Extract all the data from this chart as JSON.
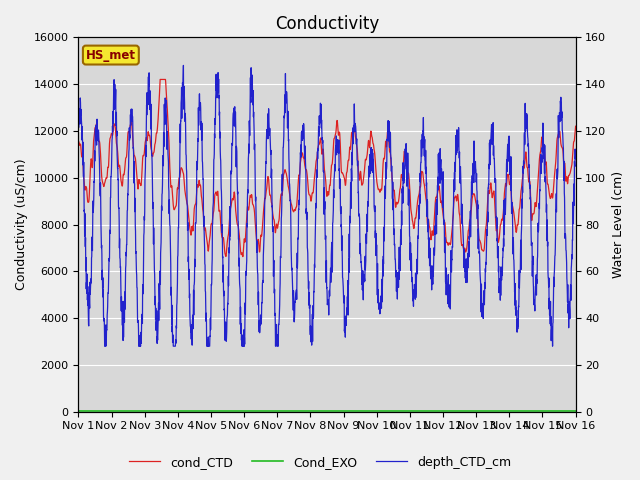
{
  "title": "Conductivity",
  "ylabel_left": "Conductivity (uS/cm)",
  "ylabel_right": "Water Level (cm)",
  "ylim_left": [
    0,
    16000
  ],
  "ylim_right": [
    0,
    160
  ],
  "xlim": [
    0,
    15
  ],
  "xtick_labels": [
    "Nov 1",
    "Nov 2",
    "Nov 3",
    "Nov 4",
    "Nov 5",
    "Nov 6",
    "Nov 7",
    "Nov 8",
    "Nov 9",
    "Nov 10",
    "Nov 11",
    "Nov 12",
    "Nov 13",
    "Nov 14",
    "Nov 15",
    "Nov 16"
  ],
  "xtick_positions": [
    0,
    1,
    2,
    3,
    4,
    5,
    6,
    7,
    8,
    9,
    10,
    11,
    12,
    13,
    14,
    15
  ],
  "color_cond_CTD": "#dd2222",
  "color_Cond_EXO": "#22bb22",
  "color_depth_CTD": "#2222cc",
  "label_cond_CTD": "cond_CTD",
  "label_Cond_EXO": "Cond_EXO",
  "label_depth_CTD": "depth_CTD_cm",
  "station_label": "HS_met",
  "plot_bg_color": "#d8d8d8",
  "outer_bg_color": "#f0f0f0",
  "title_fontsize": 12,
  "axis_label_fontsize": 9,
  "tick_fontsize": 8,
  "legend_fontsize": 9
}
